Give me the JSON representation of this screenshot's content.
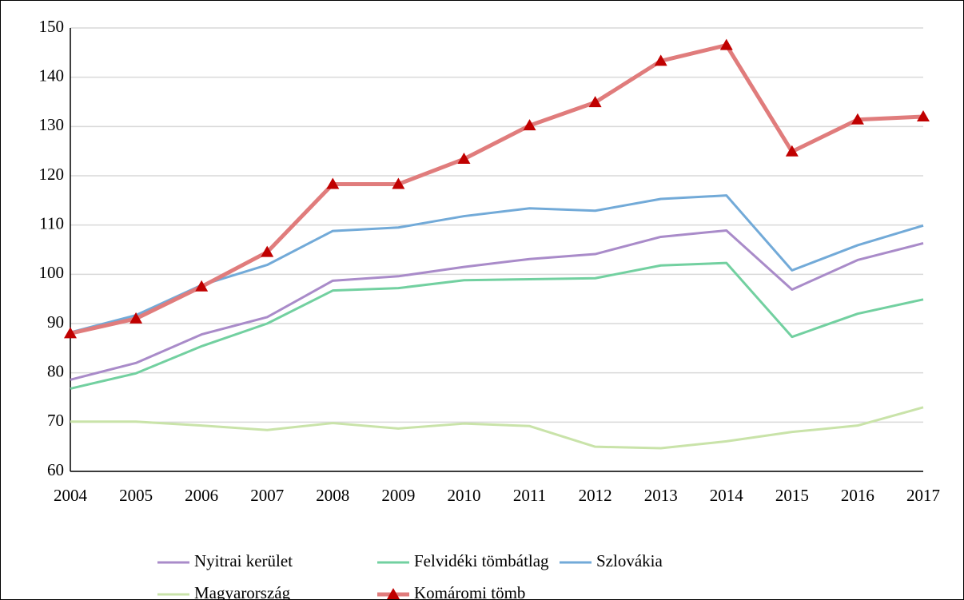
{
  "chart_data": {
    "type": "line",
    "categories": [
      "2004",
      "2005",
      "2006",
      "2007",
      "2008",
      "2009",
      "2010",
      "2011",
      "2012",
      "2013",
      "2014",
      "2015",
      "2016",
      "2017"
    ],
    "series": [
      {
        "name": "Nyitrai kerület",
        "color": "#a98bc9",
        "values": [
          78.6,
          82,
          87.8,
          91.3,
          98.7,
          99.6,
          101.5,
          103.1,
          104.1,
          107.6,
          108.9,
          96.9,
          102.9,
          106.3
        ]
      },
      {
        "name": "Felvidéki tömbátlag",
        "color": "#72d0a0",
        "values": [
          76.8,
          79.9,
          85.4,
          90,
          96.7,
          97.2,
          98.8,
          99,
          99.2,
          101.8,
          102.3,
          87.3,
          92,
          94.9
        ]
      },
      {
        "name": "Szlovákia",
        "color": "#72aad8",
        "values": [
          88.2,
          91.7,
          97.8,
          101.9,
          108.8,
          109.5,
          111.8,
          113.4,
          112.9,
          115.3,
          116,
          100.8,
          105.9,
          109.9
        ]
      },
      {
        "name": "Magyarország",
        "color": "#c9e3a9",
        "values": [
          70.1,
          70.1,
          69.3,
          68.4,
          69.8,
          68.7,
          69.7,
          69.2,
          65,
          64.7,
          66.1,
          68,
          69.3,
          73
        ]
      },
      {
        "name": "Komáromi tömb",
        "color": "#e07c7c",
        "marker": "triangle",
        "marker_color": "#c00000",
        "values": [
          88,
          91,
          97.5,
          104.5,
          118.3,
          118.3,
          123.4,
          130.2,
          134.9,
          143.3,
          146.5,
          124.9,
          131.4,
          132
        ]
      }
    ],
    "ylim": [
      60,
      150
    ],
    "yticks": [
      60,
      70,
      80,
      90,
      100,
      110,
      120,
      130,
      140,
      150
    ],
    "grid": true,
    "legend": "bottom"
  }
}
